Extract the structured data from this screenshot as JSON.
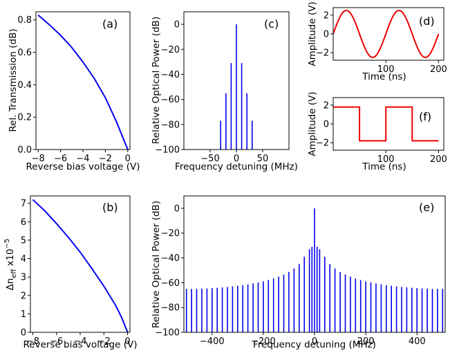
{
  "chart_data": [
    {
      "id": "a",
      "type": "line",
      "panel_label": "(a)",
      "xlabel": "Reverse bias voltage (V)",
      "ylabel": "Rel. Transmission (dB)",
      "xlim": [
        -8.2,
        0.2
      ],
      "ylim": [
        0,
        0.85
      ],
      "xticks": [
        -8,
        -6,
        -4,
        -2,
        0
      ],
      "xtick_labels": [
        "−8",
        "−6",
        "−4",
        "−2",
        "0"
      ],
      "yticks": [
        0,
        0.2,
        0.4,
        0.6,
        0.8
      ],
      "ytick_labels": [
        "0.0",
        "0.2",
        "0.4",
        "0.6",
        "0.8"
      ],
      "series": [
        {
          "name": "transmission",
          "color": "#0000ee",
          "x": [
            -8,
            -7,
            -6,
            -5,
            -4,
            -3,
            -2,
            -1,
            0
          ],
          "y": [
            0.83,
            0.77,
            0.705,
            0.63,
            0.54,
            0.44,
            0.32,
            0.17,
            0.0
          ]
        }
      ]
    },
    {
      "id": "b",
      "type": "line",
      "panel_label": "(b)",
      "xlabel": "Reverse bias voltage (V)",
      "ylabel": "Δn_eff ×10⁻⁵",
      "ylabel_parts": {
        "delta": "Δn",
        "sub": "eff",
        "mult": " x10",
        "exp": "−5"
      },
      "xlim": [
        -8.2,
        0.2
      ],
      "ylim": [
        0,
        7.4
      ],
      "xticks": [
        -8,
        -6,
        -4,
        -2,
        0
      ],
      "xtick_labels": [
        "−8",
        "−6",
        "−4",
        "−2",
        "0"
      ],
      "yticks": [
        0,
        1,
        2,
        3,
        4,
        5,
        6,
        7
      ],
      "ytick_labels": [
        "0",
        "1",
        "2",
        "3",
        "4",
        "5",
        "6",
        "7"
      ],
      "series": [
        {
          "name": "delta_neff",
          "color": "#0000ee",
          "x": [
            -8,
            -7,
            -6,
            -5,
            -4,
            -3,
            -2,
            -1,
            -0.5,
            0
          ],
          "y": [
            7.2,
            6.6,
            5.9,
            5.15,
            4.35,
            3.45,
            2.5,
            1.45,
            0.8,
            0.0
          ]
        }
      ]
    },
    {
      "id": "c",
      "type": "stem",
      "panel_label": "(c)",
      "xlabel": "Frequency detuning (MHz)",
      "ylabel": "Relative Optical Power (dB)",
      "xlim": [
        -100,
        100
      ],
      "ylim": [
        -100,
        10
      ],
      "baseline": -100,
      "xticks": [
        -50,
        0,
        50
      ],
      "xtick_labels": [
        "−50",
        "0",
        "50"
      ],
      "yticks": [
        -100,
        -80,
        -60,
        -40,
        -20,
        0
      ],
      "ytick_labels": [
        "−100",
        "−80",
        "−60",
        "−40",
        "−20",
        "0"
      ],
      "series": [
        {
          "name": "spectrum",
          "color": "#0000ee",
          "x": [
            -30,
            -20,
            -10,
            0,
            10,
            20,
            30
          ],
          "y": [
            -77,
            -55,
            -31,
            0,
            -31,
            -55,
            -77
          ]
        }
      ]
    },
    {
      "id": "d",
      "type": "line",
      "panel_label": "(d)",
      "xlabel": "Time (ns)",
      "ylabel": "Amplitude (V)",
      "xlim": [
        0,
        210
      ],
      "ylim": [
        -2.8,
        2.8
      ],
      "xticks": [
        100,
        200
      ],
      "xtick_labels": [
        "100",
        "200"
      ],
      "yticks": [
        -2,
        0,
        2
      ],
      "ytick_labels": [
        "−2",
        "0",
        "2"
      ],
      "series": [
        {
          "name": "sine",
          "color": "#ee0000",
          "x": [
            0,
            25,
            50,
            75,
            100,
            125,
            150,
            175,
            200
          ],
          "y": [
            0,
            2.5,
            0,
            -2.5,
            0,
            2.5,
            0,
            -2.5,
            0
          ]
        }
      ]
    },
    {
      "id": "f",
      "type": "line",
      "panel_label": "(f)",
      "xlabel": "Time (ns)",
      "ylabel": "Amplitude (V)",
      "xlim": [
        0,
        210
      ],
      "ylim": [
        -2.8,
        2.8
      ],
      "xticks": [
        100,
        200
      ],
      "xtick_labels": [
        "100",
        "200"
      ],
      "yticks": [
        -2,
        0,
        2
      ],
      "ytick_labels": [
        "−2",
        "0",
        "2"
      ],
      "series": [
        {
          "name": "square",
          "color": "#ee0000",
          "x": [
            0,
            50,
            50,
            100,
            100,
            150,
            150,
            200
          ],
          "y": [
            1.8,
            1.8,
            -1.8,
            -1.8,
            1.8,
            1.8,
            -1.8,
            -1.8
          ]
        }
      ]
    },
    {
      "id": "e",
      "type": "stem",
      "panel_label": "(e)",
      "xlabel": "Frequency detuning (MHz)",
      "ylabel": "Relative Optical Power (dB)",
      "xlim": [
        -510,
        510
      ],
      "ylim": [
        -100,
        10
      ],
      "baseline": -100,
      "xticks": [
        -400,
        -200,
        0,
        200,
        400
      ],
      "xtick_labels": [
        "−400",
        "−200",
        "0",
        "200",
        "400"
      ],
      "yticks": [
        -100,
        -80,
        -60,
        -40,
        -20,
        0
      ],
      "ytick_labels": [
        "−100",
        "−80",
        "−60",
        "−40",
        "−20",
        "0"
      ],
      "series": [
        {
          "name": "spectrum",
          "color": "#0000ee",
          "x": [
            -500,
            -480,
            -460,
            -440,
            -420,
            -400,
            -380,
            -360,
            -340,
            -320,
            -300,
            -280,
            -260,
            -240,
            -220,
            -200,
            -180,
            -160,
            -140,
            -120,
            -100,
            -80,
            -60,
            -40,
            -20,
            -10,
            0,
            10,
            20,
            40,
            60,
            80,
            100,
            120,
            140,
            160,
            180,
            200,
            220,
            240,
            260,
            280,
            300,
            320,
            340,
            360,
            380,
            400,
            420,
            440,
            460,
            480,
            500
          ],
          "y": [
            -65,
            -65,
            -65,
            -64.8,
            -64.6,
            -64.4,
            -64.1,
            -63.8,
            -63.4,
            -63,
            -62.5,
            -62,
            -61.3,
            -60.6,
            -59.8,
            -58.9,
            -57.8,
            -56.6,
            -55.1,
            -53.4,
            -51.3,
            -48.5,
            -45,
            -39,
            -33,
            -31,
            0,
            -31,
            -33,
            -39,
            -45,
            -48.5,
            -51.3,
            -53.4,
            -55.1,
            -56.6,
            -57.8,
            -58.9,
            -59.8,
            -60.6,
            -61.3,
            -62,
            -62.5,
            -63,
            -63.4,
            -63.8,
            -64.1,
            -64.4,
            -64.6,
            -64.8,
            -65,
            -65,
            -65
          ]
        }
      ]
    }
  ]
}
